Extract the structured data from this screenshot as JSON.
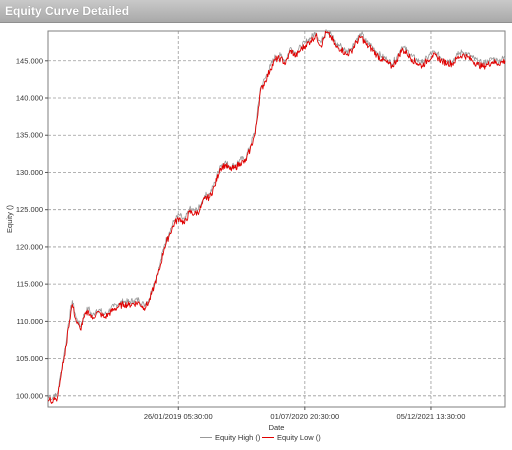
{
  "window": {
    "title": "Equity Curve Detailed"
  },
  "chart_data": {
    "type": "line",
    "title": "",
    "xlabel": "Date",
    "ylabel": "Equity ()",
    "ylim": [
      98500,
      149000
    ],
    "y_ticks": [
      "100.000",
      "105.000",
      "110.000",
      "115.000",
      "120.000",
      "125.000",
      "130.000",
      "135.000",
      "140.000",
      "145.000"
    ],
    "x_ticks": [
      "26/01/2019 05:30:00",
      "01/07/2020 20:30:00",
      "05/12/2021 13:30:00"
    ],
    "grid": true,
    "legend_position": "bottom-center",
    "x": [
      0,
      2,
      4,
      6,
      8,
      10,
      12,
      14,
      16,
      18,
      20,
      24,
      28,
      32,
      36,
      40,
      44,
      48,
      52,
      56,
      60,
      65,
      70,
      75,
      80,
      85,
      90,
      95,
      100,
      105,
      110,
      115,
      120,
      125,
      130,
      135,
      140,
      145,
      150,
      155,
      160,
      165,
      170,
      175,
      180,
      185,
      190,
      195,
      200,
      205,
      210,
      215,
      220,
      225,
      230,
      235,
      240,
      245,
      250,
      255,
      260,
      265,
      270,
      275,
      280,
      285,
      290,
      295,
      300,
      305,
      310,
      315,
      320,
      325,
      330,
      335,
      340,
      345,
      350,
      355,
      360,
      365,
      370,
      375,
      380,
      385,
      390,
      395,
      400,
      405,
      410,
      415,
      420,
      425,
      430,
      435,
      440,
      445,
      452
    ],
    "series": [
      {
        "name": "Equity High ()",
        "color": "#999999",
        "values": [
          99600,
          100100,
          99500,
          100200,
          99900,
          100600,
          102500,
          104000,
          105800,
          107200,
          109600,
          112800,
          110400,
          109300,
          111000,
          111800,
          110700,
          111600,
          111400,
          110900,
          111400,
          112000,
          112400,
          112700,
          112600,
          112800,
          112900,
          112200,
          113000,
          115100,
          117300,
          120300,
          122000,
          123600,
          124300,
          123500,
          125100,
          124800,
          125300,
          126900,
          127100,
          128600,
          130900,
          131400,
          130800,
          131000,
          131700,
          131800,
          133500,
          135600,
          141300,
          142700,
          144300,
          145600,
          145700,
          145000,
          146800,
          146000,
          146900,
          147500,
          148100,
          148800,
          147400,
          149200,
          148600,
          147200,
          147000,
          146200,
          146700,
          147900,
          148600,
          147500,
          147000,
          146200,
          145600,
          145200,
          144600,
          145500,
          146900,
          146400,
          145600,
          145100,
          144700,
          145400,
          146100,
          145900,
          145300,
          145100,
          145000,
          145800,
          146200,
          145900,
          145400,
          144900,
          144600,
          144900,
          145300,
          145000,
          145400
        ]
      },
      {
        "name": "Equity Low ()",
        "color": "#e00000",
        "values": [
          99300,
          99800,
          99100,
          99800,
          99500,
          100200,
          102000,
          103600,
          105300,
          106700,
          109100,
          112300,
          110000,
          108900,
          110600,
          111400,
          110300,
          111200,
          111000,
          110500,
          111000,
          111600,
          112000,
          112300,
          112200,
          112400,
          112500,
          111800,
          112600,
          114700,
          116900,
          119900,
          121600,
          123200,
          123900,
          123100,
          124700,
          124400,
          124900,
          126500,
          126700,
          128200,
          130500,
          131000,
          130400,
          130600,
          131300,
          131400,
          133100,
          135200,
          140900,
          142300,
          143900,
          145200,
          145300,
          144600,
          146400,
          145600,
          146500,
          147100,
          147700,
          148400,
          147000,
          148800,
          148200,
          146800,
          146600,
          145800,
          146300,
          147500,
          148200,
          147100,
          146600,
          145800,
          145200,
          144800,
          144200,
          145100,
          146500,
          146000,
          145200,
          144700,
          144300,
          145000,
          145700,
          145500,
          144900,
          144700,
          144600,
          145400,
          145800,
          145500,
          145000,
          144500,
          144200,
          144500,
          144900,
          144600,
          145000
        ]
      }
    ]
  }
}
